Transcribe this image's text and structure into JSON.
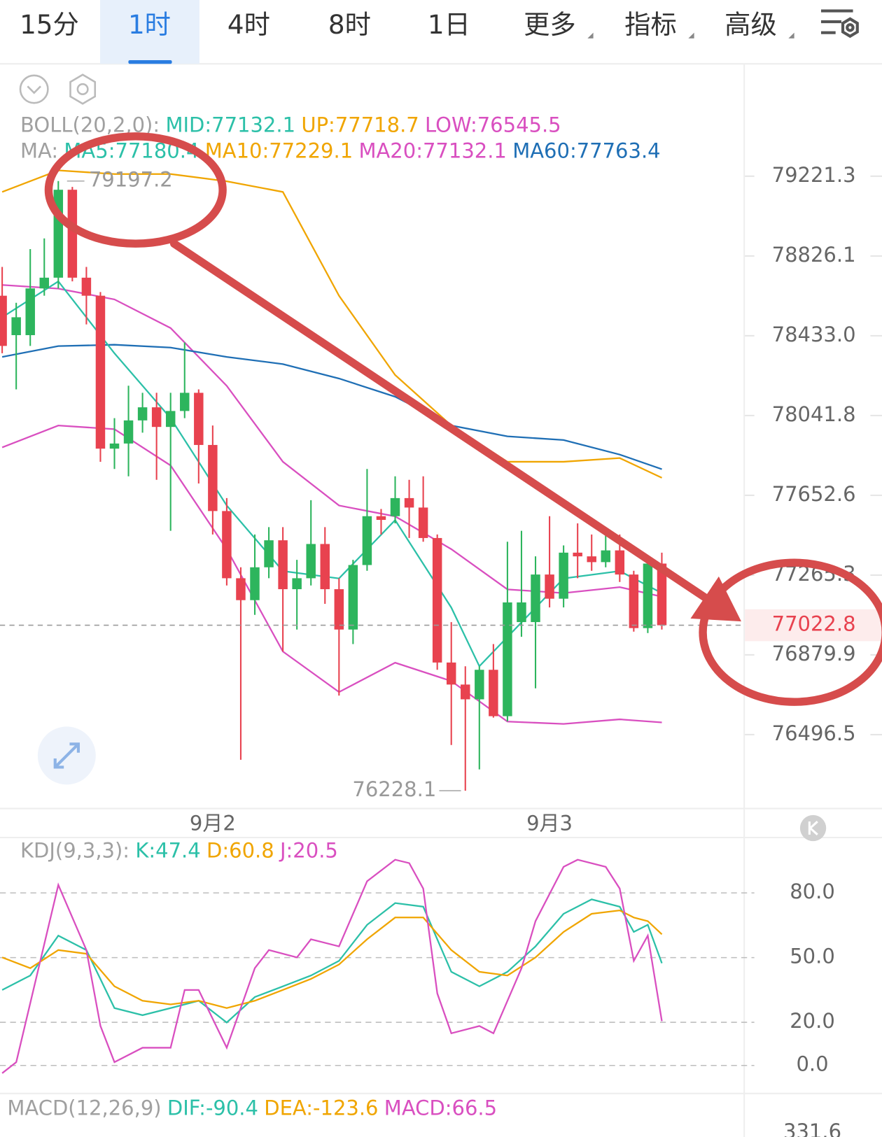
{
  "toolbar": {
    "tabs": [
      "15分",
      "1时",
      "4时",
      "8时",
      "1日",
      "更多",
      "指标",
      "高级"
    ]
  },
  "chart_data": [
    {
      "type": "candlestick",
      "header": [
        [
          {
            "text": "BOLL(20,2,0):",
            "color": "#a0a0a0"
          },
          {
            "text": "MID:77132.1",
            "color": "#2cc0a8"
          },
          {
            "text": "UP:77718.7",
            "color": "#f0a500"
          },
          {
            "text": "LOW:76545.5",
            "color": "#d94fc0"
          }
        ],
        [
          {
            "text": "MA:",
            "color": "#a0a0a0"
          },
          {
            "text": "MA5:77180.4",
            "color": "#2cc0a8"
          },
          {
            "text": "MA10:77229.1",
            "color": "#f0a500"
          },
          {
            "text": "MA20:77132.1",
            "color": "#d94fc0"
          },
          {
            "text": "MA60:77763.4",
            "color": "#1f6fb5"
          }
        ]
      ],
      "categories": [
        null,
        null,
        null,
        null,
        null,
        null,
        null,
        null,
        null,
        null,
        null,
        null,
        null,
        null,
        null,
        "9月2",
        null,
        null,
        null,
        null,
        null,
        null,
        null,
        null,
        null,
        null,
        null,
        null,
        null,
        null,
        null,
        null,
        null,
        null,
        null,
        null,
        null,
        null,
        null,
        "9月3",
        null,
        null,
        null,
        null,
        null,
        null,
        null,
        null
      ],
      "open": [
        78630,
        78436,
        78436,
        78666,
        78719,
        79154,
        78719,
        78630,
        77880,
        77905,
        78018,
        78082,
        77986,
        78064,
        78153,
        77898,
        77576,
        77250,
        77144,
        77303,
        77434,
        77197,
        77250,
        77416,
        77197,
        77002,
        77314,
        77551,
        77551,
        77639,
        77593,
        77445,
        76843,
        76737,
        76666,
        76808,
        76585,
        77038,
        77038,
        77268,
        77151,
        77374,
        77356,
        77328,
        77385,
        77268,
        77009,
        77321
      ],
      "high": [
        78772,
        78595,
        78860,
        78913,
        79197.2,
        79168,
        78772,
        78648,
        78029,
        78188,
        78153,
        78153,
        78153,
        78400,
        78170,
        77993,
        77639,
        77303,
        77462,
        77498,
        77498,
        77339,
        77629,
        77498,
        77250,
        77339,
        77781,
        77586,
        77745,
        77728,
        77745,
        77462,
        77038,
        76825,
        76825,
        76932,
        77427,
        77480,
        77356,
        77551,
        77409,
        77516,
        77462,
        77480,
        77462,
        77286,
        77356,
        77374
      ],
      "low": [
        78347,
        78170,
        78383,
        78630,
        78666,
        78701,
        78489,
        77816,
        77781,
        77745,
        77958,
        77728,
        77480,
        78029,
        77710,
        77462,
        77215,
        76376,
        77073,
        77250,
        76896,
        77002,
        77215,
        77126,
        76684,
        76932,
        77286,
        77462,
        77516,
        77445,
        77427,
        76808,
        76447,
        76228.1,
        76330,
        76578,
        76560,
        76967,
        76719,
        77109,
        77109,
        77250,
        77286,
        77303,
        77232,
        76992,
        76985,
        77002
      ],
      "close": [
        78383,
        78524,
        78666,
        78719,
        79154,
        78719,
        78630,
        77880,
        77905,
        78018,
        78082,
        77986,
        78064,
        78153,
        77898,
        77576,
        77250,
        77144,
        77303,
        77434,
        77197,
        77250,
        77416,
        77197,
        77002,
        77314,
        77551,
        77533,
        77639,
        77593,
        77445,
        76843,
        76737,
        76666,
        76808,
        76585,
        77133,
        77133,
        77268,
        77151,
        77374,
        77356,
        77328,
        77385,
        77268,
        77009,
        77321,
        77022.8
      ],
      "up_color": "#2db55d",
      "down_color": "#e8424f",
      "indicators": [
        {
          "color": "#f0a500",
          "x": [
            0,
            4,
            8,
            12,
            16,
            20,
            24,
            28,
            32,
            36,
            40,
            44,
            47
          ],
          "values": [
            79143,
            79250,
            79232,
            79232,
            79196,
            79143,
            78630,
            78240,
            77993,
            77816,
            77816,
            77834,
            77738
          ]
        },
        {
          "color": "#d94fc0",
          "x": [
            0,
            4,
            8,
            12,
            16,
            20,
            24,
            28,
            32,
            36,
            40,
            44,
            47
          ],
          "values": [
            78683,
            78665,
            78612,
            78471,
            78187,
            77816,
            77603,
            77550,
            77391,
            77196,
            77178,
            77207,
            77161
          ]
        },
        {
          "color": "#d94fc0",
          "x": [
            0,
            4,
            8,
            12,
            16,
            20,
            24,
            28,
            32,
            36,
            40,
            44,
            47
          ],
          "values": [
            77886,
            77993,
            77975,
            77798,
            77391,
            76896,
            76701,
            76842,
            76754,
            76559,
            76548,
            76570,
            76555
          ]
        },
        {
          "color": "#1f6fb5",
          "x": [
            0,
            4,
            8,
            12,
            16,
            20,
            24,
            28,
            32,
            36,
            40,
            44,
            47
          ],
          "values": [
            78329,
            78382,
            78389,
            78375,
            78329,
            78294,
            78223,
            78134,
            77993,
            77940,
            77922,
            77851,
            77780
          ]
        },
        {
          "color": "#2cc0a8",
          "x": [
            0,
            4,
            8,
            12,
            16,
            20,
            24,
            28,
            32,
            34,
            36,
            40,
            44,
            47
          ],
          "values": [
            78524,
            78701,
            78347,
            78029,
            77603,
            77285,
            77249,
            77532,
            77108,
            76825,
            76966,
            77249,
            77285,
            77178
          ]
        }
      ],
      "log_scale": true,
      "ylim": [
        76150,
        79774
      ],
      "yticks": [
        79221.3,
        78826.1,
        {
          "value": 78433.0,
          "label": "78433.0"
        },
        78041.8,
        77652.6,
        77265.3,
        76879.9,
        76496.5
      ]
    },
    {
      "type": "line",
      "header": [
        [
          {
            "text": "KDJ(9,3,3):",
            "color": "#a0a0a0"
          },
          {
            "text": "K:47.4",
            "color": "#2cc0a8"
          },
          {
            "text": "D:60.8",
            "color": "#f0a500"
          },
          {
            "text": "J:20.5",
            "color": "#d94fc0"
          }
        ]
      ],
      "ylim": [
        -12,
        104
      ],
      "yticks": [
        {
          "value": 80,
          "label": "80.0"
        },
        {
          "value": 50,
          "label": "50.0"
        },
        {
          "value": 20,
          "label": "20.0"
        },
        {
          "value": 0,
          "label": "0.0"
        }
      ],
      "grid": true,
      "series": [
        {
          "color": "#2cc0a8",
          "x": [
            0,
            2,
            4,
            6,
            8,
            10,
            12,
            14,
            16,
            18,
            20,
            22,
            24,
            26,
            28,
            30,
            32,
            34,
            36,
            38,
            40,
            42,
            44,
            45,
            46,
            47
          ],
          "values": [
            35.0,
            41.7,
            60.2,
            53.5,
            26.6,
            23.3,
            26.6,
            30.0,
            19.9,
            31.7,
            36.7,
            41.7,
            48.5,
            65.2,
            75.3,
            73.6,
            43.4,
            36.7,
            43.4,
            55.2,
            70.3,
            77.0,
            73.6,
            61.9,
            65.2,
            47.4
          ]
        },
        {
          "color": "#f0a500",
          "x": [
            0,
            2,
            4,
            6,
            8,
            10,
            12,
            14,
            16,
            18,
            20,
            22,
            24,
            26,
            28,
            30,
            32,
            34,
            36,
            38,
            40,
            42,
            44,
            45,
            46,
            47
          ],
          "values": [
            50.1,
            45.1,
            53.5,
            51.8,
            36.7,
            30.0,
            28.3,
            30.0,
            26.6,
            30.0,
            35.0,
            40.1,
            46.8,
            58.5,
            68.6,
            68.6,
            53.5,
            43.4,
            41.7,
            50.1,
            61.9,
            70.3,
            71.9,
            68.6,
            66.9,
            60.8
          ]
        },
        {
          "color": "#d94fc0",
          "x": [
            0,
            1,
            4,
            6,
            7,
            8,
            10,
            12,
            13,
            14,
            16,
            18,
            19,
            21,
            22,
            24,
            26,
            28,
            29,
            30,
            31,
            32,
            34,
            35,
            37,
            38,
            40,
            41,
            43,
            44,
            45,
            46,
            47
          ],
          "values": [
            -3.6,
            1.5,
            83.7,
            53.5,
            18.3,
            1.5,
            8.2,
            8.2,
            35.0,
            35.0,
            8.2,
            45.1,
            53.5,
            50.1,
            58.5,
            55.2,
            85.4,
            95.4,
            93.8,
            82.0,
            33.4,
            14.9,
            18.3,
            14.9,
            45.1,
            66.9,
            92.1,
            95.4,
            92.1,
            82.0,
            48.5,
            60.2,
            20.5
          ]
        }
      ]
    },
    {
      "type": "macd",
      "header": [
        [
          {
            "text": "MACD(12,26,9)",
            "color": "#a0a0a0"
          },
          {
            "text": "DIF:-90.4",
            "color": "#2cc0a8"
          },
          {
            "text": "DEA:-123.6",
            "color": "#f0a500"
          },
          {
            "text": "MACD:66.5",
            "color": "#d94fc0"
          }
        ]
      ],
      "yticks": [
        331.6
      ]
    }
  ]
}
